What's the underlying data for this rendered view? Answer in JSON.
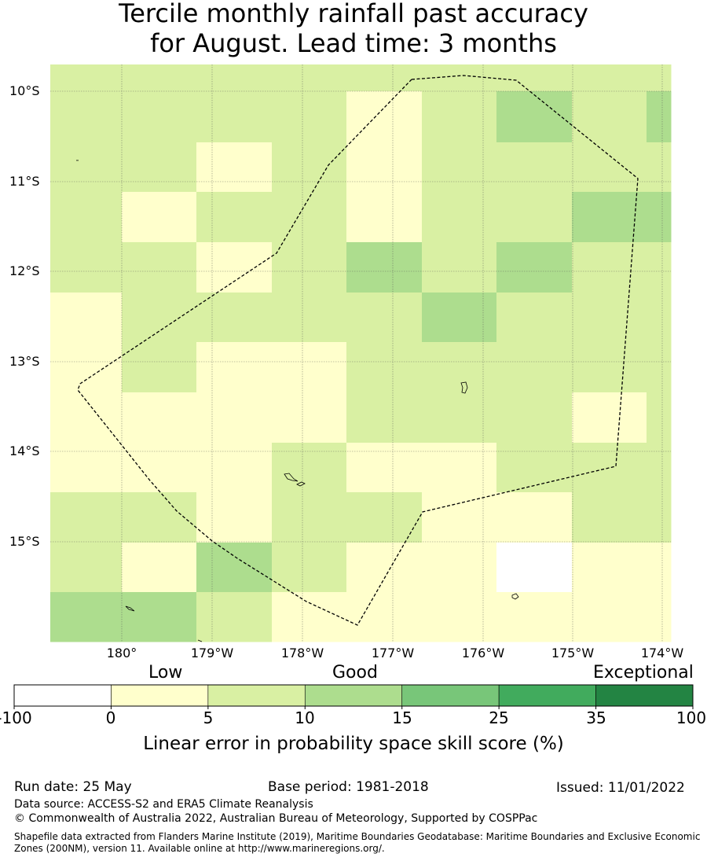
{
  "title": {
    "line1": "Tercile monthly rainfall past accuracy",
    "line2": "for August. Lead time: 3 months"
  },
  "map": {
    "lat_labels": [
      "10°S",
      "11°S",
      "12°S",
      "13°S",
      "14°S",
      "15°S"
    ],
    "lon_labels": [
      "180°",
      "179°W",
      "178°W",
      "177°W",
      "176°W",
      "175°W",
      "174°W"
    ],
    "grid_values": [
      [
        7,
        7,
        7,
        7,
        7,
        7,
        7,
        7,
        7
      ],
      [
        7,
        7,
        7,
        7,
        2,
        7,
        12,
        7,
        12
      ],
      [
        7,
        7,
        2,
        7,
        2,
        7,
        7,
        7,
        7
      ],
      [
        7,
        2,
        7,
        7,
        2,
        7,
        7,
        12,
        12
      ],
      [
        7,
        7,
        2,
        7,
        12,
        7,
        12,
        7,
        7
      ],
      [
        2,
        7,
        7,
        7,
        7,
        12,
        7,
        7,
        7
      ],
      [
        2,
        7,
        2,
        2,
        7,
        7,
        7,
        7,
        7
      ],
      [
        2,
        2,
        2,
        2,
        7,
        7,
        7,
        2,
        7
      ],
      [
        2,
        2,
        2,
        7,
        2,
        2,
        7,
        7,
        7
      ],
      [
        7,
        7,
        2,
        7,
        7,
        2,
        2,
        7,
        7
      ],
      [
        7,
        2,
        12,
        7,
        2,
        2,
        -50,
        2,
        2
      ],
      [
        12,
        12,
        7,
        2,
        2,
        2,
        2,
        2,
        2
      ]
    ]
  },
  "colorbar": {
    "quality_labels": [
      "Low",
      "Good",
      "Exceptional"
    ],
    "tick_labels": [
      "-100",
      "0",
      "5",
      "10",
      "15",
      "25",
      "35",
      "100"
    ],
    "bins": [
      {
        "from": -100,
        "to": 0,
        "color": "#ffffff"
      },
      {
        "from": 0,
        "to": 5,
        "color": "#ffffcc"
      },
      {
        "from": 5,
        "to": 10,
        "color": "#d9f0a3"
      },
      {
        "from": 10,
        "to": 15,
        "color": "#addd8e"
      },
      {
        "from": 15,
        "to": 25,
        "color": "#78c679"
      },
      {
        "from": 25,
        "to": 35,
        "color": "#41ab5d"
      },
      {
        "from": 35,
        "to": 100,
        "color": "#238443"
      }
    ],
    "label": "Linear error in probability space skill score (%)"
  },
  "footer": {
    "run_date": "Run date: 25 May",
    "base_period": "Base period: 1981-2018",
    "issued": "Issued: 11/01/2022",
    "data_source": "Data source: ACCESS-S2 and ERA5 Climate Reanalysis",
    "copyright": "© Commonwealth of Australia 2022, Australian Bureau of Meteorology, Supported by COSPPac",
    "shapefile_line1": "Shapefile data extracted from Flanders Marine Institute (2019), Maritime Boundaries Geodatabase: Maritime Boundaries and Exclusive Economic",
    "shapefile_line2": "Zones (200NM), version 11. Available online at http://www.marineregions.org/."
  }
}
